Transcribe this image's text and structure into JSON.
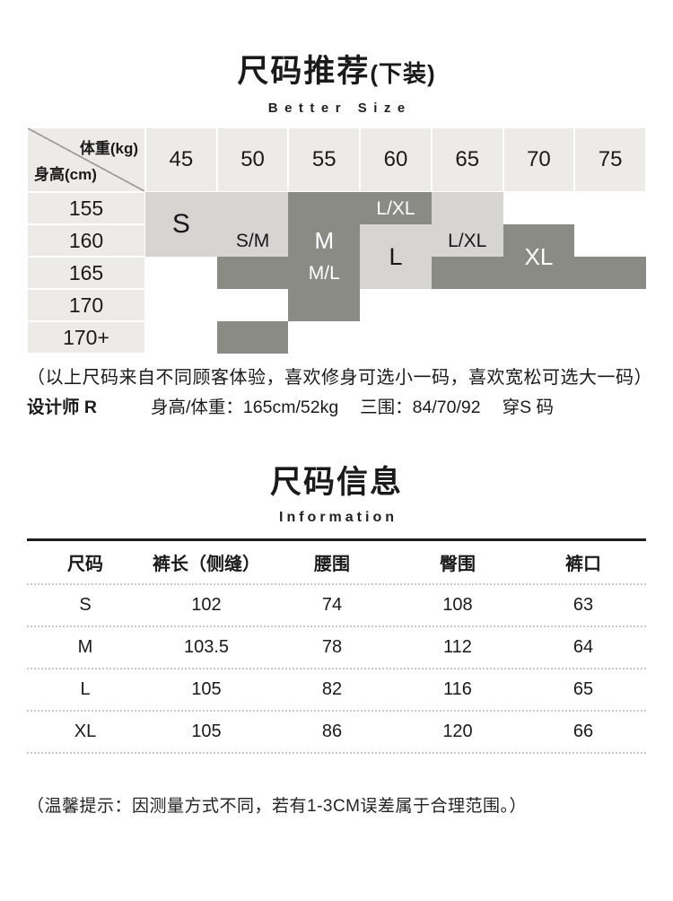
{
  "recommend": {
    "title": "尺码推荐",
    "title_suffix": "(下装)",
    "subtitle": "Better Size",
    "note": "（以上尺码来自不同顾客体验，喜欢修身可选小一码，喜欢宽松可选大一码）",
    "designer": {
      "name": "设计师 R",
      "height_weight": "身高/体重：165cm/52kg",
      "measurements": "三围：84/70/92",
      "wears_size": "穿S 码"
    }
  },
  "size_matrix": {
    "corner": {
      "top_right": "体重(kg)",
      "bottom_left": "身高(cm)"
    },
    "weight_columns": [
      "45",
      "50",
      "55",
      "60",
      "65",
      "70",
      "75"
    ],
    "height_rows": [
      "155",
      "160",
      "165",
      "170",
      "170+"
    ],
    "colors": {
      "header_bg": "#ecebe7",
      "band_light": "#d6d5d1",
      "band_dark": "#8b8b86"
    },
    "shaded_cells": [
      {
        "row": 0,
        "col": 0,
        "tone": "light"
      },
      {
        "row": 0,
        "col": 1,
        "tone": "light"
      },
      {
        "row": 0,
        "col": 2,
        "tone": "dark"
      },
      {
        "row": 0,
        "col": 3,
        "tone": "dark"
      },
      {
        "row": 0,
        "col": 4,
        "tone": "light"
      },
      {
        "row": 1,
        "col": 0,
        "tone": "light"
      },
      {
        "row": 1,
        "col": 1,
        "tone": "light"
      },
      {
        "row": 1,
        "col": 2,
        "tone": "dark"
      },
      {
        "row": 1,
        "col": 3,
        "tone": "light"
      },
      {
        "row": 1,
        "col": 4,
        "tone": "light"
      },
      {
        "row": 1,
        "col": 5,
        "tone": "dark"
      },
      {
        "row": 2,
        "col": 1,
        "tone": "dark"
      },
      {
        "row": 2,
        "col": 2,
        "tone": "dark"
      },
      {
        "row": 2,
        "col": 3,
        "tone": "light"
      },
      {
        "row": 2,
        "col": 4,
        "tone": "dark"
      },
      {
        "row": 2,
        "col": 5,
        "tone": "dark"
      },
      {
        "row": 2,
        "col": 6,
        "tone": "dark"
      },
      {
        "row": 3,
        "col": 2,
        "tone": "dark"
      },
      {
        "row": 4,
        "col": 1,
        "tone": "dark"
      }
    ],
    "size_labels": [
      {
        "text": "S",
        "row": 0,
        "col": 0,
        "rowspan": 2,
        "on": "light",
        "font": 30
      },
      {
        "text": "S/M",
        "row": 1,
        "col": 1,
        "rowspan": 1,
        "on": "light",
        "font": 21
      },
      {
        "text": "M",
        "row": 1,
        "col": 2,
        "rowspan": 1,
        "on": "dark",
        "font": 26
      },
      {
        "text": "L/XL",
        "row": 0,
        "col": 3,
        "rowspan": 1,
        "on": "dark",
        "font": 21
      },
      {
        "text": "L",
        "row": 1,
        "col": 3,
        "rowspan": 2,
        "on": "light",
        "font": 27
      },
      {
        "text": "L/XL",
        "row": 1,
        "col": 4,
        "rowspan": 1,
        "on": "light",
        "font": 21
      },
      {
        "text": "XL",
        "row": 1,
        "col": 5,
        "rowspan": 2,
        "on": "dark",
        "font": 26
      },
      {
        "text": "M/L",
        "row": 2,
        "col": 2,
        "rowspan": 1,
        "on": "dark",
        "font": 21
      }
    ]
  },
  "info": {
    "title": "尺码信息",
    "subtitle": "Information",
    "note": "（温馨提示：因测量方式不同，若有1-3CM误差属于合理范围。）"
  },
  "chart_data": {
    "type": "table",
    "title": "尺码信息 Information",
    "columns": [
      "尺码",
      "裤长（侧缝）",
      "腰围",
      "臀围",
      "裤口"
    ],
    "rows": [
      [
        "S",
        "102",
        "74",
        "108",
        "63"
      ],
      [
        "M",
        "103.5",
        "78",
        "112",
        "64"
      ],
      [
        "L",
        "105",
        "82",
        "116",
        "65"
      ],
      [
        "XL",
        "105",
        "86",
        "120",
        "66"
      ]
    ]
  }
}
